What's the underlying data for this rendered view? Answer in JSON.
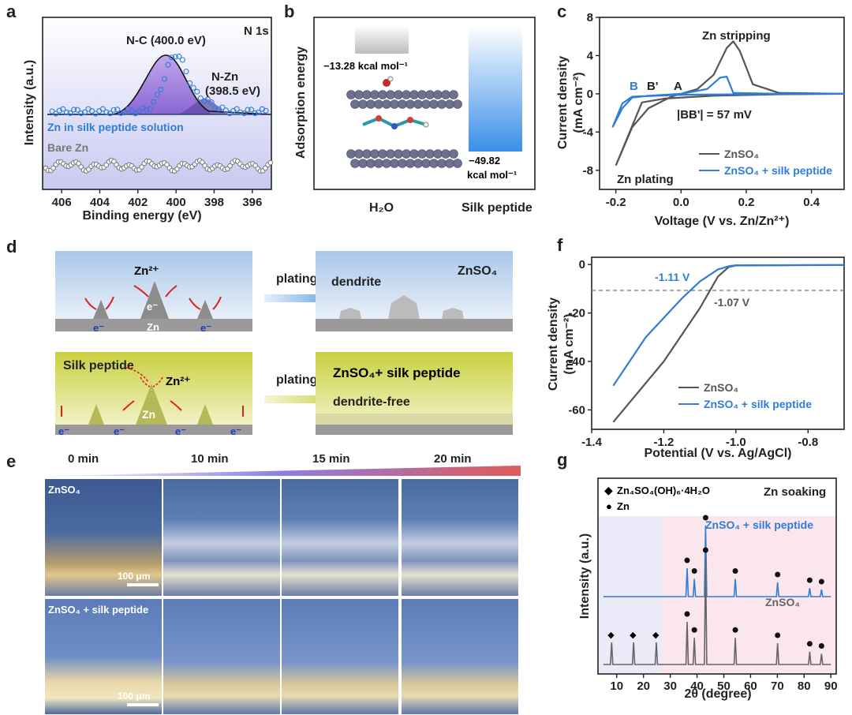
{
  "labels": {
    "a": "a",
    "b": "b",
    "c": "c",
    "d": "d",
    "e": "e",
    "f": "f",
    "g": "g"
  },
  "panel_a": {
    "corner": "N 1s",
    "peak1": "N-C (400.0 eV)",
    "peak2a": "N-Zn",
    "peak2b": "(398.5 eV)",
    "legend1": "Zn in silk peptide solution",
    "legend2": "Bare Zn",
    "chart_data": {
      "type": "line",
      "xlabel": "Binding energy (eV)",
      "ylabel": "Intensity (a.u.)",
      "xlim": [
        407,
        395
      ],
      "xticks": [
        "406",
        "404",
        "402",
        "400",
        "398",
        "396"
      ],
      "peaks": [
        {
          "name": "N-C",
          "center": 400.0
        },
        {
          "name": "N-Zn",
          "center": 398.5
        }
      ]
    }
  },
  "panel_b": {
    "ylabel": "Adsorption energy",
    "e1": "−13.28 kcal mol⁻¹",
    "e2": "−49.82",
    "e2unit": "kcal mol⁻¹",
    "x1": "H₂O",
    "x2": "Silk peptide",
    "chart_data": {
      "type": "bar",
      "categories": [
        "H2O",
        "Silk peptide"
      ],
      "values": [
        -13.28,
        -49.82
      ]
    }
  },
  "panel_c": {
    "strip": "Zn stripping",
    "plate": "Zn plating",
    "B": "B",
    "Bp": "B'",
    "A": "A",
    "delta": "|BB'| = 57 mV",
    "chart_data": {
      "type": "line",
      "xlabel": "Voltage (V vs. Zn/Zn²⁺)",
      "ylabel": "Current density",
      "yunit": "(mA cm⁻²)",
      "xlim": [
        -0.25,
        0.5
      ],
      "ylim": [
        -10,
        8
      ],
      "xticks": [
        "-0.2",
        "0.0",
        "0.2",
        "0.4"
      ],
      "yticks": [
        "8",
        "4",
        "0",
        "-4",
        "-8"
      ],
      "series": [
        {
          "name": "ZnSO₄",
          "color": "#555555",
          "x": [
            -0.2,
            -0.15,
            -0.1,
            -0.03,
            0.05,
            0.1,
            0.14,
            0.16,
            0.18,
            0.22,
            0.3,
            0.5,
            0.3,
            0.1,
            -0.05,
            -0.12,
            -0.2
          ],
          "y": [
            -7.5,
            -3.5,
            -1.5,
            -0.3,
            0.5,
            2.0,
            4.8,
            5.5,
            4.5,
            1.0,
            0.1,
            0.0,
            -0.05,
            -0.2,
            -0.5,
            -0.9,
            -7.5
          ]
        },
        {
          "name": "ZnSO₄ + silk peptide",
          "color": "#2E7DD6",
          "x": [
            -0.21,
            -0.18,
            -0.15,
            -0.1,
            0.0,
            0.08,
            0.12,
            0.14,
            0.16,
            0.3,
            0.5,
            0.3,
            0.0,
            -0.15,
            -0.18,
            -0.21
          ],
          "y": [
            -3.5,
            -1.5,
            -0.4,
            -0.2,
            0.0,
            0.5,
            1.7,
            1.8,
            0.1,
            0.0,
            0.0,
            -0.02,
            -0.1,
            -0.3,
            -1.0,
            -3.5
          ]
        }
      ]
    }
  },
  "panel_d": {
    "zn2": "Zn²⁺",
    "e": "e⁻",
    "zn": "Zn",
    "plating": "plating",
    "dendrite": "dendrite",
    "znso4": "ZnSO₄",
    "silk": "Silk peptide",
    "znso4silk": "ZnSO₄+ silk peptide",
    "dfree": "dendrite-free"
  },
  "panel_e": {
    "times": [
      "0 min",
      "10 min",
      "15 min",
      "20 min"
    ],
    "row1": "ZnSO₄",
    "row2": "ZnSO₄ + silk peptide",
    "scale": "100 μm"
  },
  "panel_f": {
    "v1": "-1.11 V",
    "v2": "-1.07 V",
    "chart_data": {
      "type": "line",
      "xlabel": "Potential (V vs. Ag/AgCl)",
      "ylabel": "Current density",
      "yunit": "(mA cm⁻²)",
      "xlim": [
        -1.4,
        -0.7
      ],
      "ylim": [
        -68,
        3
      ],
      "xticks": [
        "-1.4",
        "-1.2",
        "-1.0",
        "-0.8"
      ],
      "yticks": [
        "0",
        "-20",
        "-40",
        "-60"
      ],
      "series": [
        {
          "name": "ZnSO₄",
          "color": "#555555",
          "x": [
            -1.34,
            -1.2,
            -1.1,
            -1.05,
            -1.02,
            -1.0,
            -0.7
          ],
          "y": [
            -65,
            -40,
            -18,
            -5,
            -1,
            -0.4,
            -0.2
          ]
        },
        {
          "name": "ZnSO₄ + silk peptide",
          "color": "#2E7DD6",
          "x": [
            -1.34,
            -1.25,
            -1.15,
            -1.1,
            -1.05,
            -1.02,
            -1.0,
            -0.7
          ],
          "y": [
            -50,
            -30,
            -14,
            -7,
            -2,
            -0.7,
            -0.3,
            -0.2
          ]
        }
      ]
    }
  },
  "panel_g": {
    "leg1": "Zn₄SO₄(OH)₆·4H₂O",
    "leg2": "Zn",
    "corner": "Zn soaking",
    "s1": "ZnSO₄ + silk peptide",
    "s2": "ZnSO₄",
    "chart_data": {
      "type": "line",
      "xlabel": "2θ (degree)",
      "ylabel": "Intensity (a.u.)",
      "xlim": [
        3,
        92
      ],
      "xticks": [
        "10",
        "20",
        "30",
        "40",
        "50",
        "60",
        "70",
        "80",
        "90"
      ],
      "zn_peaks": [
        36.3,
        39.0,
        43.2,
        54.3,
        70.1,
        82.1,
        86.5
      ],
      "hydroxide_peaks": [
        8.1,
        16.3,
        24.8
      ]
    }
  }
}
